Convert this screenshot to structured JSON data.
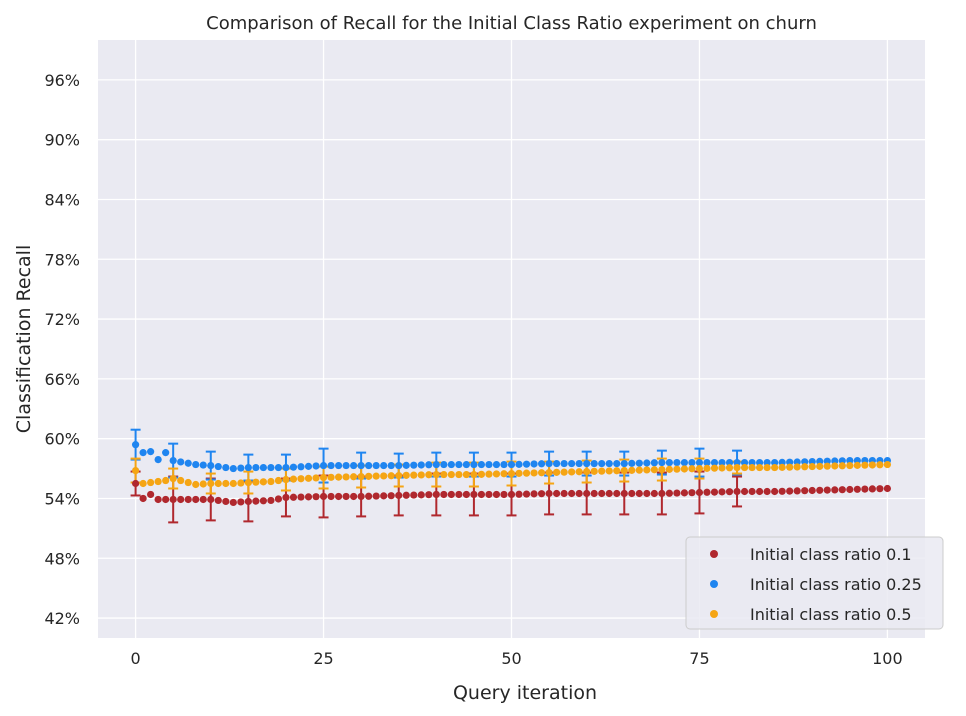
{
  "chart_data": {
    "type": "scatter",
    "title": "Comparison of Recall for the Initial Class Ratio experiment on churn",
    "xlabel": "Query iteration",
    "ylabel": "Classification Recall",
    "xlim": [
      -5,
      105
    ],
    "ylim": [
      0.4,
      1.0
    ],
    "x_ticks": [
      0,
      25,
      50,
      75,
      100
    ],
    "x_tick_labels": [
      "0",
      "25",
      "50",
      "75",
      "100"
    ],
    "y_ticks": [
      0.42,
      0.48,
      0.54,
      0.6,
      0.66,
      0.72,
      0.78,
      0.84,
      0.9,
      0.96
    ],
    "y_tick_labels": [
      "42%",
      "48%",
      "54%",
      "60%",
      "66%",
      "72%",
      "78%",
      "84%",
      "90%",
      "96%"
    ],
    "grid": true,
    "legend_position": "bottom-right",
    "error_bar_every": 5,
    "series": [
      {
        "name": "Initial class ratio 0.1",
        "color": "#b0282e",
        "anchors": {
          "x": [
            0,
            1,
            2,
            3,
            4,
            5,
            8,
            10,
            13,
            15,
            18,
            20,
            25,
            30,
            35,
            40,
            45,
            50,
            55,
            60,
            65,
            70,
            75,
            80,
            85,
            90,
            95,
            100
          ],
          "y": [
            0.555,
            0.54,
            0.544,
            0.539,
            0.539,
            0.539,
            0.539,
            0.539,
            0.536,
            0.537,
            0.538,
            0.541,
            0.542,
            0.542,
            0.543,
            0.544,
            0.544,
            0.544,
            0.545,
            0.545,
            0.545,
            0.545,
            0.546,
            0.547,
            0.547,
            0.548,
            0.549,
            0.55
          ]
        },
        "err": [
          0.012,
          0.023,
          0.021,
          0.02,
          0.019,
          0.021,
          0.02,
          0.02,
          0.021,
          0.021,
          0.021,
          0.021,
          0.021,
          0.021,
          0.021,
          0.021,
          0.015
        ]
      },
      {
        "name": "Initial class ratio 0.25",
        "color": "#1f85f0",
        "anchors": {
          "x": [
            0,
            1,
            2,
            3,
            4,
            5,
            8,
            10,
            13,
            15,
            18,
            20,
            25,
            30,
            35,
            40,
            45,
            50,
            55,
            60,
            65,
            70,
            75,
            80,
            85,
            90,
            95,
            100
          ],
          "y": [
            0.594,
            0.586,
            0.587,
            0.579,
            0.586,
            0.578,
            0.574,
            0.573,
            0.57,
            0.571,
            0.571,
            0.571,
            0.573,
            0.573,
            0.573,
            0.574,
            0.574,
            0.574,
            0.575,
            0.575,
            0.575,
            0.576,
            0.576,
            0.576,
            0.576,
            0.577,
            0.578,
            0.578
          ]
        },
        "err": [
          0.015,
          0.017,
          0.014,
          0.013,
          0.013,
          0.017,
          0.013,
          0.012,
          0.012,
          0.012,
          0.012,
          0.012,
          0.012,
          0.012,
          0.012,
          0.014,
          0.012
        ]
      },
      {
        "name": "Initial class ratio 0.5",
        "color": "#f5a514",
        "anchors": {
          "x": [
            0,
            1,
            2,
            3,
            4,
            5,
            8,
            10,
            13,
            15,
            18,
            20,
            25,
            30,
            35,
            40,
            45,
            50,
            55,
            60,
            65,
            70,
            75,
            80,
            85,
            90,
            95,
            100
          ],
          "y": [
            0.568,
            0.555,
            0.556,
            0.557,
            0.558,
            0.56,
            0.554,
            0.555,
            0.555,
            0.556,
            0.557,
            0.559,
            0.561,
            0.562,
            0.563,
            0.564,
            0.564,
            0.565,
            0.566,
            0.567,
            0.568,
            0.569,
            0.57,
            0.571,
            0.571,
            0.572,
            0.573,
            0.574
          ]
        },
        "err": [
          0.012,
          0.01,
          0.01,
          0.011,
          0.011,
          0.011,
          0.011,
          0.011,
          0.012,
          0.012,
          0.012,
          0.011,
          0.011,
          0.011,
          0.011,
          0.01,
          0.006
        ]
      }
    ]
  }
}
